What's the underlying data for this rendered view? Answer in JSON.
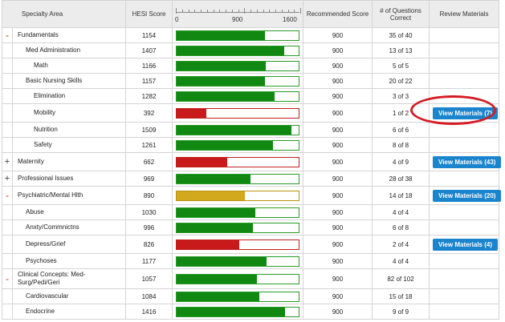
{
  "headers": {
    "area": "Specialty Area",
    "score": "HESI Score",
    "recommended": "Recommended Score",
    "questions": "# of Questions Correct",
    "review": "Review Materials"
  },
  "scale": {
    "min": "0",
    "mid": "900",
    "max": "1600",
    "min_value": 0,
    "max_value": 1600
  },
  "colors": {
    "above": "#118811",
    "below": "#c81a1a",
    "near": "#d2a81c",
    "button": "#1a84cd",
    "highlight": "#d51c24"
  },
  "rows": [
    {
      "expander": "-",
      "name": "Fundamentals",
      "indent": 0,
      "score": "1154",
      "value": 1154,
      "color": "green",
      "recommended": "900",
      "questions": "35 of 40",
      "review": ""
    },
    {
      "expander": "",
      "name": "Med Administration",
      "indent": 1,
      "score": "1407",
      "value": 1407,
      "color": "green",
      "recommended": "900",
      "questions": "13 of 13",
      "review": ""
    },
    {
      "expander": "",
      "name": "Math",
      "indent": 2,
      "score": "1166",
      "value": 1166,
      "color": "green",
      "recommended": "900",
      "questions": "5 of 5",
      "review": ""
    },
    {
      "expander": "",
      "name": "Basic Nursing Skills",
      "indent": 1,
      "score": "1157",
      "value": 1157,
      "color": "green",
      "recommended": "900",
      "questions": "20 of 22",
      "review": ""
    },
    {
      "expander": "",
      "name": "Elimination",
      "indent": 2,
      "score": "1282",
      "value": 1282,
      "color": "green",
      "recommended": "900",
      "questions": "3 of 3",
      "review": ""
    },
    {
      "expander": "",
      "name": "Mobility",
      "indent": 2,
      "score": "392",
      "value": 392,
      "color": "red",
      "recommended": "900",
      "questions": "1 of 2",
      "review": "View Materials  (7)"
    },
    {
      "expander": "",
      "name": "Nutrition",
      "indent": 2,
      "score": "1509",
      "value": 1509,
      "color": "green",
      "recommended": "900",
      "questions": "6 of 6",
      "review": ""
    },
    {
      "expander": "",
      "name": "Safety",
      "indent": 2,
      "score": "1261",
      "value": 1261,
      "color": "green",
      "recommended": "900",
      "questions": "8 of 8",
      "review": ""
    },
    {
      "expander": "+",
      "name": "Maternity",
      "indent": 0,
      "score": "662",
      "value": 662,
      "color": "red",
      "recommended": "900",
      "questions": "4 of 9",
      "review": "View Materials  (43)"
    },
    {
      "expander": "+",
      "name": "Professional Issues",
      "indent": 0,
      "score": "969",
      "value": 969,
      "color": "green",
      "recommended": "900",
      "questions": "28 of 38",
      "review": ""
    },
    {
      "expander": "-",
      "name": "Psychiatric/Mental Hlth",
      "indent": 0,
      "score": "890",
      "value": 890,
      "color": "yellow",
      "recommended": "900",
      "questions": "14 of 18",
      "review": "View Materials  (20)"
    },
    {
      "expander": "",
      "name": "Abuse",
      "indent": 1,
      "score": "1030",
      "value": 1030,
      "color": "green",
      "recommended": "900",
      "questions": "4 of 4",
      "review": ""
    },
    {
      "expander": "",
      "name": "Anxty/Commnictns",
      "indent": 1,
      "score": "996",
      "value": 996,
      "color": "green",
      "recommended": "900",
      "questions": "6 of 8",
      "review": ""
    },
    {
      "expander": "",
      "name": "Depress/Grief",
      "indent": 1,
      "score": "826",
      "value": 826,
      "color": "red",
      "recommended": "900",
      "questions": "2 of 4",
      "review": "View Materials  (4)"
    },
    {
      "expander": "",
      "name": "Psychoses",
      "indent": 1,
      "score": "1177",
      "value": 1177,
      "color": "green",
      "recommended": "900",
      "questions": "4 of 4",
      "review": ""
    },
    {
      "expander": "-",
      "name": "Clinical Concepts: Med-Surg/Pedi/Geri",
      "indent": 0,
      "score": "1057",
      "value": 1057,
      "color": "green",
      "recommended": "900",
      "questions": "82 of 102",
      "review": ""
    },
    {
      "expander": "",
      "name": "Cardiovascular",
      "indent": 1,
      "score": "1084",
      "value": 1084,
      "color": "green",
      "recommended": "900",
      "questions": "15 of 18",
      "review": ""
    },
    {
      "expander": "",
      "name": "Endocrine",
      "indent": 1,
      "score": "1416",
      "value": 1416,
      "color": "green",
      "recommended": "900",
      "questions": "9 of 9",
      "review": ""
    }
  ]
}
